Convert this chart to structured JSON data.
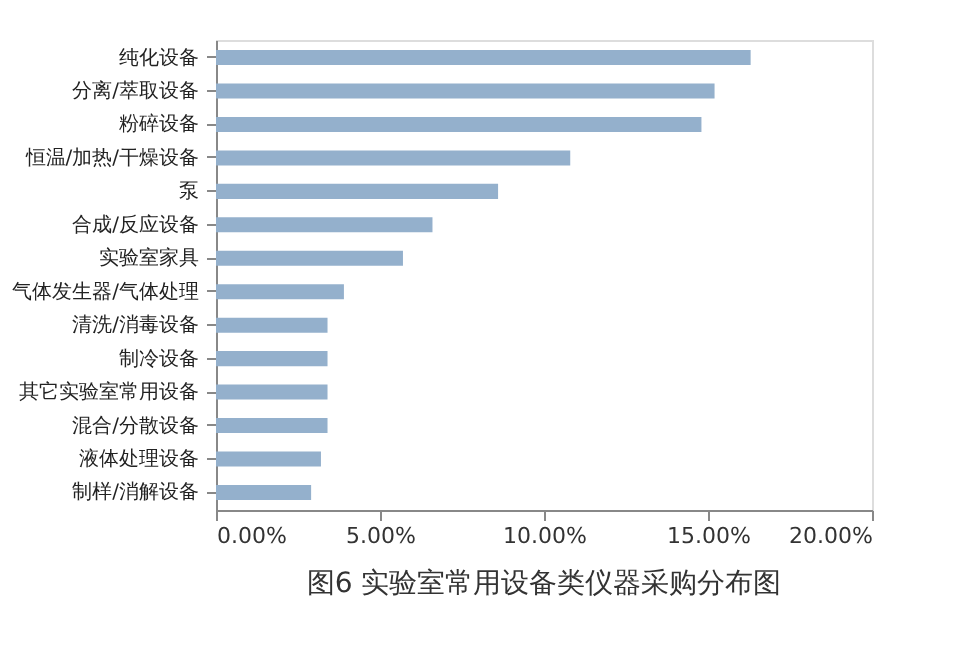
{
  "chart_data": {
    "type": "bar",
    "orientation": "horizontal",
    "title": "图6 实验室常用设备类仪器采购分布图",
    "categories": [
      "纯化设备",
      "分离/萃取设备",
      "粉碎设备",
      "恒温/加热/干燥设备",
      "泵",
      "合成/反应设备",
      "实验室家具",
      "气体发生器/气体处理",
      "清洗/消毒设备",
      "制冷设备",
      "其它实验室常用设备",
      "混合/分散设备",
      "液体处理设备",
      "制样/消解设备"
    ],
    "values": [
      16.3,
      15.2,
      14.8,
      10.8,
      8.6,
      6.6,
      5.7,
      3.9,
      3.4,
      3.4,
      3.4,
      3.4,
      3.2,
      2.9
    ],
    "color": "#94b0cc",
    "xlim": [
      0,
      20
    ],
    "xticks": [
      {
        "value": 0,
        "label": "0.00%"
      },
      {
        "value": 5,
        "label": "5.00%"
      },
      {
        "value": 10,
        "label": "10.00%"
      },
      {
        "value": 15,
        "label": "15.00%"
      },
      {
        "value": 20,
        "label": "20.00%"
      }
    ],
    "grid": false
  }
}
